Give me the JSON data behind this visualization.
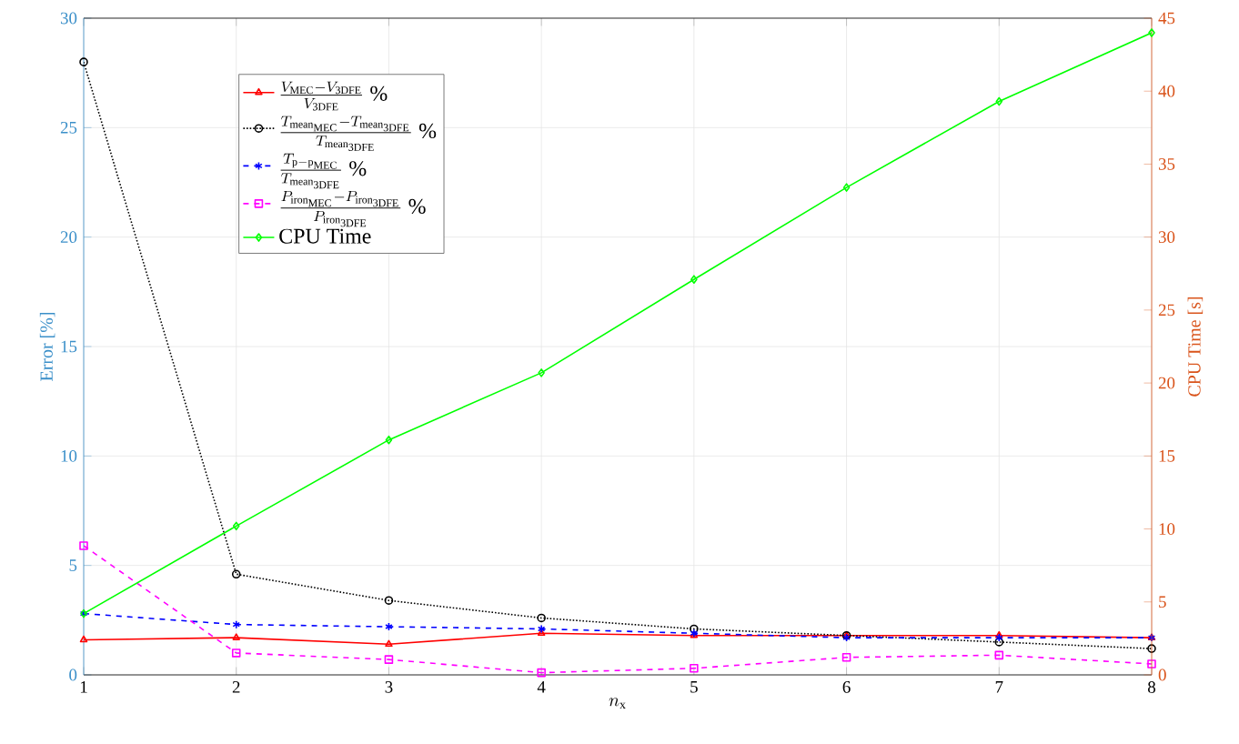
{
  "chart_data": {
    "type": "line",
    "xlabel": "n_{\\mathrm{x}}",
    "ylabel": "Error [%]",
    "y2label": "CPU Time [s]",
    "x": [
      1,
      2,
      3,
      4,
      5,
      6,
      7,
      8
    ],
    "series": [
      {
        "name": "\\frac{V_{\\mathrm{MEC}}-V_{\\mathrm{3DFE}}}{V_{\\mathrm{3DFE}}}\\ \\%",
        "color": "#ff0000",
        "marker": "triangle",
        "line_style": "solid",
        "values": [
          1.6,
          1.7,
          1.4,
          1.9,
          1.8,
          1.8,
          1.8,
          1.7
        ]
      },
      {
        "name": "\\frac{T_{\\mathrm{mean}_{\\mathrm{MEC}}}-T_{\\mathrm{mean}_{\\mathrm{3DFE}}}}{T_{\\mathrm{mean}_{\\mathrm{3DFE}}}}\\ \\%",
        "color": "#000000",
        "marker": "circle",
        "line_style": "dotted",
        "values": [
          28.0,
          4.6,
          3.4,
          2.6,
          2.1,
          1.8,
          1.5,
          1.2
        ]
      },
      {
        "name": "\\frac{T_{\\mathrm{p-p}_{\\mathrm{MEC}}}}{T_{\\mathrm{mean}_{\\mathrm{3DFE}}}}\\ \\%",
        "color": "#0000ff",
        "marker": "cross",
        "line_style": "dashed",
        "values": [
          2.8,
          2.3,
          2.2,
          2.1,
          1.9,
          1.7,
          1.7,
          1.7
        ]
      },
      {
        "name": "\\frac{P_{\\mathrm{iron}_{\\mathrm{MEC}}}-P_{\\mathrm{iron}_{\\mathrm{3DFE}}}}{P_{\\mathrm{iron}_{\\mathrm{3DFE}}}}\\ \\%",
        "color": "#ff00ff",
        "marker": "square",
        "line_style": "dashed",
        "values": [
          5.9,
          1.0,
          0.7,
          0.1,
          0.3,
          0.8,
          0.9,
          0.5
        ]
      },
      {
        "name": "\\text{CPU Time}",
        "color": "#00ff00",
        "marker": "diamond",
        "line_style": "solid",
        "axis": "y2",
        "values": [
          4.2,
          10.2,
          16.1,
          20.7,
          27.1,
          33.4,
          39.3,
          44.0
        ]
      }
    ],
    "xlim": [
      1,
      8
    ],
    "xticks": [
      1,
      2,
      3,
      4,
      5,
      6,
      7,
      8
    ],
    "ylim": [
      0,
      30
    ],
    "yticks": [
      0,
      5,
      10,
      15,
      20,
      25,
      30
    ],
    "y2lim": [
      0,
      45
    ],
    "y2ticks": [
      0,
      5,
      10,
      15,
      20,
      25,
      30,
      35,
      40,
      45
    ],
    "grid": true,
    "legend": "top left"
  }
}
